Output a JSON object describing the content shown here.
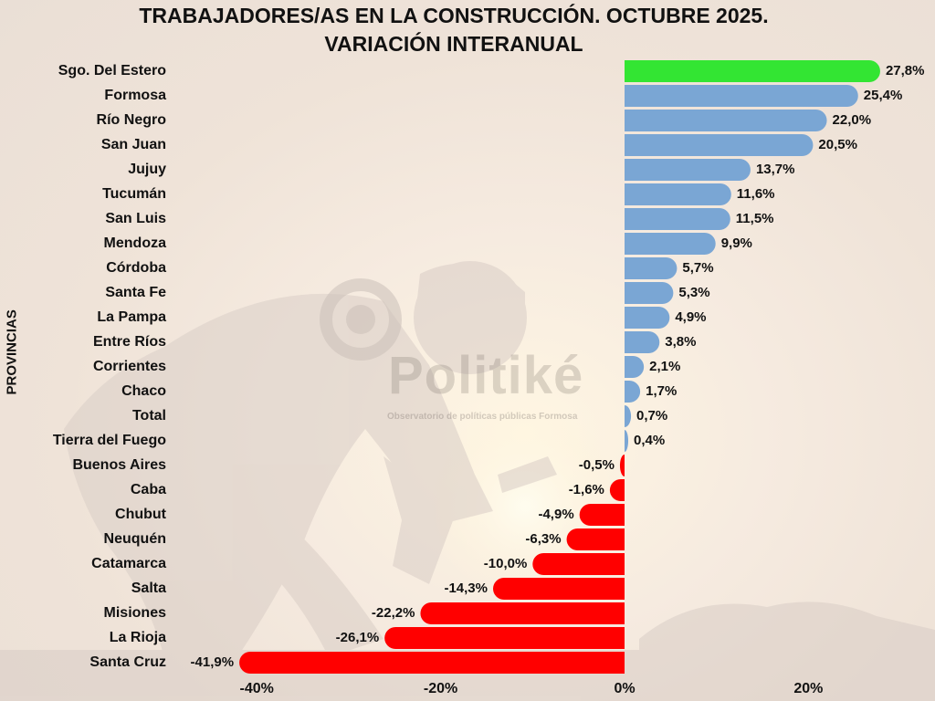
{
  "chart_data": {
    "type": "bar",
    "orientation": "horizontal",
    "title": "TRABAJADORES/AS EN LA CONSTRUCCIÓN. OCTUBRE 2025.",
    "subtitle": "VARIACIÓN INTERANUAL",
    "ylabel": "PROVINCIAS",
    "xlabel": "",
    "xlim": [
      -0.45,
      0.3
    ],
    "xticks": [
      -0.4,
      -0.2,
      0,
      0.2
    ],
    "xtick_labels": [
      "-40%",
      "-20%",
      "0%",
      "20%"
    ],
    "grid": false,
    "legend": "none",
    "categories": [
      "Sgo. Del Estero",
      "Formosa",
      "Río Negro",
      "San Juan",
      "Jujuy",
      "Tucumán",
      "San Luis",
      "Mendoza",
      "Córdoba",
      "Santa Fe",
      "La Pampa",
      "Entre Ríos",
      "Corrientes",
      "Chaco",
      "Total",
      "Tierra del Fuego",
      "Buenos Aires",
      "Caba",
      "Chubut",
      "Neuquén",
      "Catamarca",
      "Salta",
      "Misiones",
      "La Rioja",
      "Santa Cruz"
    ],
    "values": [
      0.278,
      0.254,
      0.22,
      0.205,
      0.137,
      0.116,
      0.115,
      0.099,
      0.057,
      0.053,
      0.049,
      0.038,
      0.021,
      0.017,
      0.007,
      0.004,
      -0.005,
      -0.016,
      -0.049,
      -0.063,
      -0.1,
      -0.143,
      -0.222,
      -0.261,
      -0.419
    ],
    "value_labels": [
      "27,8%",
      "25,4%",
      "22,0%",
      "20,5%",
      "13,7%",
      "11,6%",
      "11,5%",
      "9,9%",
      "5,7%",
      "5,3%",
      "4,9%",
      "3,8%",
      "2,1%",
      "1,7%",
      "0,7%",
      "0,4%",
      "-0,5%",
      "-1,6%",
      "-4,9%",
      "-6,3%",
      "-10,0%",
      "-14,3%",
      "-22,2%",
      "-26,1%",
      "-41,9%"
    ],
    "colors": {
      "highlight": "#33e533",
      "positive": "#7aa6d4",
      "negative": "#ff0000"
    },
    "highlight_category": "Sgo. Del Estero"
  },
  "watermark": {
    "name": "Politiké",
    "tagline": "Observatorio de políticas públicas Formosa"
  }
}
